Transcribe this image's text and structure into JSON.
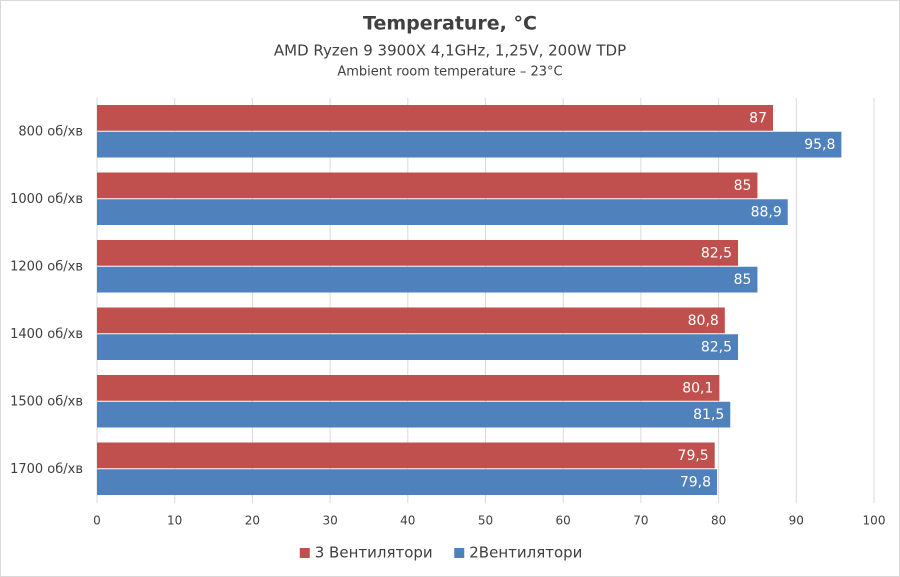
{
  "chart_data": {
    "type": "hbar",
    "title": "Temperature, °C",
    "subtitle": "AMD Ryzen 9 3900X 4,1GHz, 1,25V, 200W TDP",
    "caption": "Ambient room temperature – 23°C",
    "categories": [
      "800 об/хв",
      "1000 об/хв",
      "1200 об/хв",
      "1400 об/хв",
      "1500 об/хв",
      "1700 об/хв"
    ],
    "series": [
      {
        "name": "3 Вентилятори",
        "color": "#c0504d",
        "values": [
          87,
          85,
          82.5,
          80.8,
          80.1,
          79.5
        ],
        "value_labels": [
          "87",
          "85",
          "82,5",
          "80,8",
          "80,1",
          "79,5"
        ]
      },
      {
        "name": "2Вентилятори",
        "color": "#4f81bd",
        "values": [
          95.8,
          88.9,
          85,
          82.5,
          81.5,
          79.8
        ],
        "value_labels": [
          "95,8",
          "88,9",
          "85",
          "82,5",
          "81,5",
          "79,8"
        ]
      }
    ],
    "xlim": [
      0,
      100
    ],
    "xticks": [
      0,
      10,
      20,
      30,
      40,
      50,
      60,
      70,
      80,
      90,
      100
    ],
    "grid": true,
    "legend": "bottom"
  }
}
